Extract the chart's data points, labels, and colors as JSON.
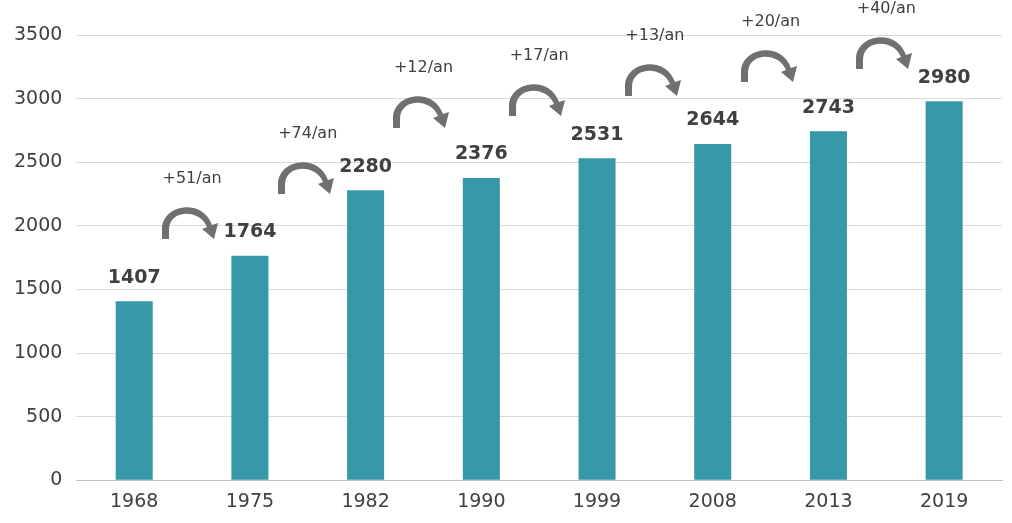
{
  "chart_data": {
    "type": "bar",
    "categories": [
      "1968",
      "1975",
      "1982",
      "1990",
      "1999",
      "2008",
      "2013",
      "2019"
    ],
    "values": [
      1407,
      1764,
      2280,
      2376,
      2531,
      2644,
      2743,
      2980
    ],
    "color": "#3698a8",
    "ylim": [
      0,
      3500
    ],
    "yticks": [
      0,
      500,
      1000,
      1500,
      2000,
      2500,
      3000,
      3500
    ],
    "grid": "y",
    "data_labels": true,
    "annotations": [
      "+51/an",
      "+74/an",
      "+12/an",
      "+17/an",
      "+13/an",
      "+20/an",
      "+40/an"
    ]
  }
}
